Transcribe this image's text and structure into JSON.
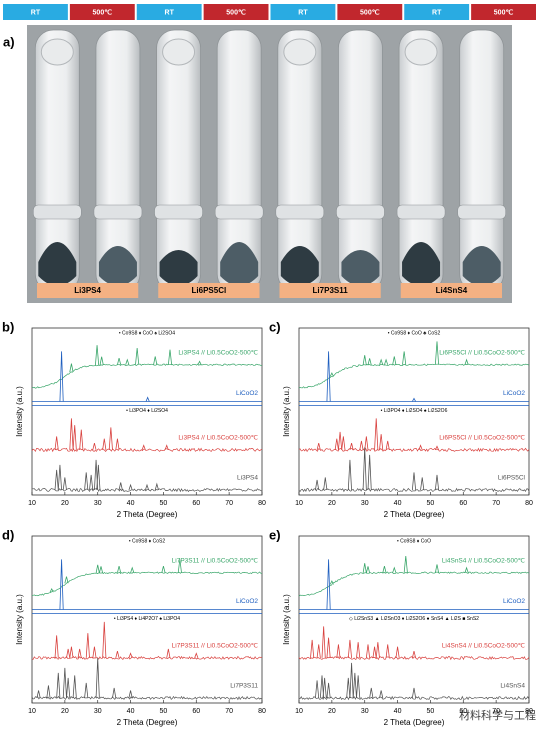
{
  "figure_a": {
    "label": "a)",
    "conditions": [
      "RT",
      "500℃",
      "RT",
      "500℃",
      "RT",
      "500℃",
      "RT",
      "500℃"
    ],
    "condition_colors": [
      "#29abe2",
      "#c1272d"
    ],
    "samples": [
      "Li3PS4",
      "Li6PS5Cl",
      "Li7P3S11",
      "Li4SnS4"
    ],
    "sample_color": "#f4b183"
  },
  "chart_data": [
    {
      "type": "xrd",
      "label": "b)",
      "xlabel": "2 Theta (Degree)",
      "ylabel": "Intensity (a.u.)",
      "xlim": [
        10,
        80
      ],
      "xticks": [
        10,
        20,
        30,
        40,
        50,
        60,
        70,
        80
      ],
      "legend_top": "• Co9S8 ♦ CoO ♠ Li2SO4",
      "legend_mid": "• Li3PO4 ♦ Li2SO4",
      "separator_color": "#1f5fbf",
      "series": [
        {
          "name": "Li3PS4 // Li0.5CoO2-500℃",
          "color": "#3aa66a",
          "x": [
            22,
            29.8,
            31.2,
            36.5,
            39,
            42,
            47.5,
            52,
            61
          ],
          "values": [
            25,
            60,
            25,
            20,
            15,
            50,
            25,
            45,
            10
          ]
        },
        {
          "name": "LiCoO2",
          "color": "#1f5fbf",
          "x": [
            19,
            45.2
          ],
          "values": [
            100,
            8
          ]
        },
        {
          "name": "Li3PS4 // Li0.5CoO2-500℃",
          "color": "#d9423f",
          "x": [
            17.5,
            22,
            23,
            25,
            29,
            32,
            34,
            36,
            44,
            51
          ],
          "values": [
            30,
            70,
            55,
            45,
            15,
            25,
            50,
            25,
            10,
            10
          ]
        },
        {
          "name": "Li3PS4",
          "color": "#555555",
          "x": [
            17.5,
            18.5,
            20,
            26.5,
            28,
            29.5,
            30.2,
            37,
            40,
            45,
            48
          ],
          "values": [
            40,
            50,
            25,
            35,
            30,
            60,
            50,
            15,
            10,
            10,
            12
          ]
        }
      ]
    },
    {
      "type": "xrd",
      "label": "c)",
      "xlabel": "2 Theta (Degree)",
      "ylabel": "Intensity (a.u.)",
      "xlim": [
        10,
        80
      ],
      "xticks": [
        10,
        20,
        30,
        40,
        50,
        60,
        70,
        80
      ],
      "legend_top": "• Co9S8 ♦ CoO ♣ CoS2",
      "legend_mid": "• Li3PO4 ♦ Li2SO4 ♠ Li2S2O6",
      "separator_color": "#1f5fbf",
      "series": [
        {
          "name": "Li6PS5Cl // Li0.5CoO2-500℃",
          "color": "#3aa66a",
          "x": [
            20,
            30,
            31.5,
            35,
            36.5,
            39,
            42,
            52,
            61
          ],
          "values": [
            10,
            30,
            20,
            15,
            15,
            25,
            40,
            70,
            15
          ]
        },
        {
          "name": "LiCoO2",
          "color": "#1f5fbf",
          "x": [
            19,
            45
          ],
          "values": [
            100,
            6
          ]
        },
        {
          "name": "Li6PS5Cl // Li0.5CoO2-500℃",
          "color": "#d9423f",
          "x": [
            16,
            21.5,
            22.5,
            23.5,
            26,
            29,
            30.5,
            33.5,
            35,
            37,
            47,
            52
          ],
          "values": [
            15,
            25,
            40,
            30,
            15,
            20,
            30,
            70,
            35,
            20,
            10,
            8
          ]
        },
        {
          "name": "Li6PS5Cl",
          "color": "#555555",
          "x": [
            15.5,
            18,
            25.5,
            30,
            31.5,
            45,
            47.5,
            52
          ],
          "values": [
            20,
            25,
            60,
            85,
            70,
            35,
            25,
            30
          ]
        }
      ]
    },
    {
      "type": "xrd",
      "label": "d)",
      "xlabel": "2 Theta (Degree)",
      "ylabel": "Intensity (a.u.)",
      "xlim": [
        10,
        80
      ],
      "xticks": [
        10,
        20,
        30,
        40,
        50,
        60,
        70,
        80
      ],
      "legend_top": "• Co9S8 ♦ CoS2",
      "legend_mid": "• Li3PS4 ♦ Li4P2O7 ♠ Li3PO4",
      "separator_color": "#1f5fbf",
      "series": [
        {
          "name": "Li7P3S11 // Li0.5CoO2-500℃",
          "color": "#3aa66a",
          "x": [
            16,
            20.5,
            30,
            31,
            36.5,
            40.5,
            50,
            55
          ],
          "values": [
            10,
            20,
            25,
            20,
            20,
            15,
            20,
            40
          ]
        },
        {
          "name": "LiCoO2",
          "color": "#1f5fbf",
          "x": [
            19
          ],
          "values": [
            100
          ]
        },
        {
          "name": "Li7P3S11 // Li0.5CoO2-500℃",
          "color": "#d9423f",
          "x": [
            17.5,
            21,
            22,
            24.5,
            27,
            29,
            32,
            36,
            40,
            51.5,
            60
          ],
          "values": [
            50,
            20,
            25,
            20,
            55,
            25,
            80,
            15,
            10,
            20,
            10
          ]
        },
        {
          "name": "Li7P3S11",
          "color": "#555555",
          "x": [
            12,
            15,
            18,
            20,
            21,
            23,
            26.5,
            30,
            35,
            40
          ],
          "values": [
            15,
            25,
            50,
            60,
            40,
            45,
            30,
            80,
            20,
            15
          ]
        }
      ]
    },
    {
      "type": "xrd",
      "label": "e)",
      "xlabel": "2 Theta (Degree)",
      "ylabel": "Intensity (a.u.)",
      "xlim": [
        10,
        80
      ],
      "xticks": [
        10,
        20,
        30,
        40,
        50,
        60,
        70,
        80
      ],
      "legend_top": "• Co9S8 ♦ CoO",
      "legend_mid": "◇ Li2SnS3 ▲ Li2SnO3 ♦ Li2S2O6 ● SnS4 ▲ Li2S ■ SnS2",
      "separator_color": "#1f5fbf",
      "series": [
        {
          "name": "Li4SnS4 // Li0.5CoO2-500℃",
          "color": "#3aa66a",
          "x": [
            20,
            30,
            31,
            36,
            39,
            42.5,
            52,
            61
          ],
          "values": [
            10,
            30,
            20,
            20,
            15,
            50,
            25,
            15
          ]
        },
        {
          "name": "LiCoO2",
          "color": "#1f5fbf",
          "x": [
            19
          ],
          "values": [
            100
          ]
        },
        {
          "name": "Li4SnS4 // Li0.5CoO2-500℃",
          "color": "#d9423f",
          "x": [
            14,
            16,
            17.5,
            19,
            22,
            25.5,
            28,
            31,
            33,
            34,
            37,
            40,
            45
          ],
          "values": [
            40,
            30,
            70,
            45,
            30,
            40,
            35,
            30,
            25,
            35,
            30,
            25,
            15
          ]
        },
        {
          "name": "Li4SnS4",
          "color": "#555555",
          "x": [
            15.5,
            17,
            17.8,
            19,
            25,
            26,
            27,
            28,
            32,
            35,
            45
          ],
          "values": [
            35,
            45,
            40,
            30,
            40,
            70,
            50,
            45,
            20,
            15,
            20
          ]
        }
      ]
    }
  ],
  "watermark": "材料科学与工程"
}
